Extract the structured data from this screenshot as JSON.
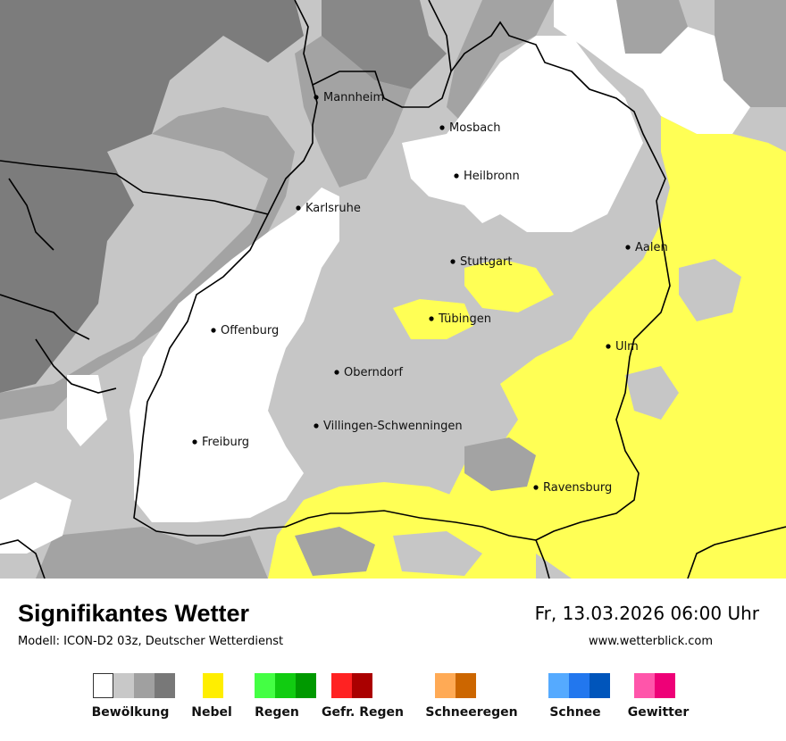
{
  "map": {
    "cities": [
      {
        "name": "Mannheim"
      },
      {
        "name": "Mosbach"
      },
      {
        "name": "Heilbronn"
      },
      {
        "name": "Karlsruhe"
      },
      {
        "name": "Stuttgart"
      },
      {
        "name": "Aalen"
      },
      {
        "name": "Tübingen"
      },
      {
        "name": "Offenburg"
      },
      {
        "name": "Ulm"
      },
      {
        "name": "Oberndorf"
      },
      {
        "name": "Villingen-Schwenningen"
      },
      {
        "name": "Freiburg"
      },
      {
        "name": "Ravensburg"
      }
    ],
    "colors": {
      "cloud_light": "#c6c6c6",
      "cloud_medium": "#a3a3a3",
      "cloud_dark": "#808080",
      "fog": "#ffff55",
      "border": "#000000"
    }
  },
  "footer": {
    "title": "Signifikantes Wetter",
    "model": "Modell: ICON-D2 03z, Deutscher Wetterdienst",
    "datetime": "Fr, 13.03.2026 06:00 Uhr",
    "site": "www.wetterblick.com"
  },
  "legend": [
    {
      "label": "Bewölkung",
      "colors": [
        "#ffffff",
        "#c8c8c8",
        "#a0a0a0",
        "#787878"
      ]
    },
    {
      "label": "Nebel",
      "colors": [
        "#ffee00"
      ]
    },
    {
      "label": "Regen",
      "colors": [
        "#44ff44",
        "#11cc11",
        "#009900"
      ]
    },
    {
      "label": "Gefr. Regen",
      "colors": [
        "#ff2222",
        "#aa0000"
      ]
    },
    {
      "label": "Schneeregen",
      "colors": [
        "#ffaa55",
        "#cc6600"
      ]
    },
    {
      "label": "Schnee",
      "colors": [
        "#55aaff",
        "#2277ee",
        "#0055bb"
      ]
    },
    {
      "label": "Gewitter",
      "colors": [
        "#ff55aa",
        "#ee0077"
      ]
    }
  ]
}
